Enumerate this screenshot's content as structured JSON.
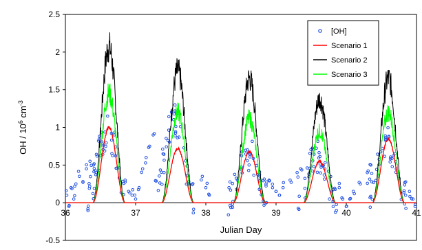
{
  "chart_data": {
    "type": "scatter+line",
    "xlabel": "Julian Day",
    "ylabel": "OH / 10",
    "ylabel_sup": "6",
    "ylabel_unit": " cm",
    "ylabel_unit_sup": "-3",
    "xlim": [
      36,
      41
    ],
    "ylim": [
      -0.5,
      2.5
    ],
    "xticks": [
      36,
      37,
      38,
      39,
      40,
      41
    ],
    "xtick_labels": [
      "36",
      "37",
      "38",
      "39",
      "40",
      "41"
    ],
    "yticks": [
      -0.5,
      0,
      0.5,
      1,
      1.5,
      2,
      2.5
    ],
    "ytick_labels": [
      "-0.5",
      "0",
      "0.5",
      "1",
      "1.5",
      "2",
      "2.5"
    ],
    "legend_position": "top-right",
    "colors": {
      "obs": "#1f4fe0",
      "s1": "#ff0000",
      "s2": "#000000",
      "s3": "#00ff00"
    },
    "legend": [
      "[OH]",
      "Scenario 1",
      "Scenario 2",
      "Scenario 3"
    ],
    "scenarios": [
      {
        "name": "Scenario 1",
        "peaks": [
          [
            36.62,
            1.0
          ],
          [
            37.6,
            0.72
          ],
          [
            38.62,
            0.68
          ],
          [
            39.62,
            0.55
          ],
          [
            40.6,
            0.85
          ]
        ]
      },
      {
        "name": "Scenario 2",
        "peaks": [
          [
            36.62,
            2.07
          ],
          [
            37.6,
            1.75
          ],
          [
            38.62,
            1.65
          ],
          [
            39.62,
            1.38
          ],
          [
            40.6,
            1.65
          ]
        ]
      },
      {
        "name": "Scenario 3",
        "peaks": [
          [
            36.62,
            1.45
          ],
          [
            37.6,
            1.2
          ],
          [
            38.62,
            1.12
          ],
          [
            39.62,
            0.95
          ],
          [
            40.6,
            1.2
          ]
        ]
      }
    ],
    "obs": {
      "name": "[OH]",
      "day_peaks": [
        [
          36.6,
          0.9
        ],
        [
          37.55,
          1.05
        ],
        [
          38.6,
          0.6
        ],
        [
          39.58,
          0.55
        ],
        [
          40.58,
          0.75
        ]
      ],
      "night_points": [
        [
          36.02,
          0.1
        ],
        [
          36.05,
          -0.05
        ],
        [
          36.08,
          0.2
        ],
        [
          36.12,
          0.05
        ],
        [
          36.15,
          0.25
        ],
        [
          36.2,
          0.35
        ],
        [
          36.25,
          0.28
        ],
        [
          36.3,
          0.45
        ],
        [
          36.35,
          0.55
        ],
        [
          36.4,
          0.5
        ],
        [
          36.45,
          0.62
        ],
        [
          36.85,
          0.3
        ],
        [
          36.9,
          0.15
        ],
        [
          36.95,
          0.1
        ],
        [
          37.0,
          0.05
        ],
        [
          37.05,
          0.2
        ],
        [
          37.1,
          0.45
        ],
        [
          37.15,
          0.6
        ],
        [
          37.2,
          0.75
        ],
        [
          37.25,
          0.9
        ],
        [
          37.95,
          0.35
        ],
        [
          38.0,
          0.2
        ],
        [
          38.05,
          0.1
        ],
        [
          38.45,
          0.3
        ],
        [
          38.5,
          0.45
        ],
        [
          38.9,
          0.3
        ],
        [
          38.95,
          0.2
        ],
        [
          39.0,
          0.15
        ],
        [
          39.05,
          0.1
        ],
        [
          39.1,
          0.2
        ],
        [
          39.2,
          0.3
        ],
        [
          39.3,
          0.4
        ],
        [
          39.35,
          0.45
        ],
        [
          39.9,
          0.2
        ],
        [
          39.95,
          0.05
        ],
        [
          40.0,
          -0.05
        ],
        [
          40.05,
          0.05
        ],
        [
          40.1,
          0.15
        ],
        [
          40.2,
          0.25
        ],
        [
          40.3,
          0.4
        ],
        [
          40.35,
          0.5
        ],
        [
          40.9,
          0.15
        ],
        [
          40.95,
          0.05
        ],
        [
          40.98,
          -0.05
        ]
      ]
    }
  }
}
